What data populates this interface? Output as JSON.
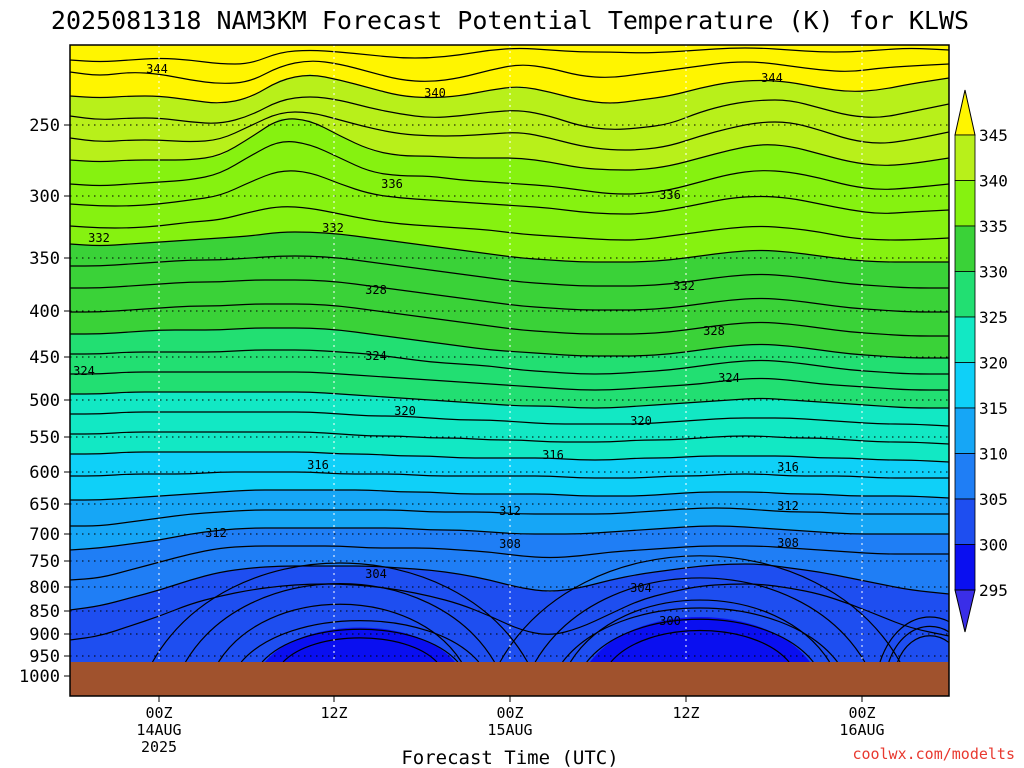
{
  "colors": {
    "ground": "#a0522d",
    "credit": "#e8392f"
  },
  "chart_data": {
    "type": "contour",
    "title": "2025081318 NAM3KM Forecast Potential Temperature (K) for KLWS",
    "xlabel": "Forecast Time (UTC)",
    "ylabel": "",
    "credit": "coolwx.com/modelts",
    "y_axis": {
      "reversed": true,
      "ticks": [
        "250",
        "300",
        "350",
        "400",
        "450",
        "500",
        "550",
        "600",
        "650",
        "700",
        "750",
        "800",
        "850",
        "900",
        "950",
        "1000"
      ]
    },
    "x_axis": {
      "ticks": [
        {
          "lines": [
            "00Z",
            "14AUG",
            "2025"
          ]
        },
        {
          "lines": [
            "12Z"
          ]
        },
        {
          "lines": [
            "00Z",
            "15AUG"
          ]
        },
        {
          "lines": [
            "12Z"
          ]
        },
        {
          "lines": [
            "00Z",
            "16AUG"
          ]
        }
      ]
    },
    "colorbar": {
      "levels": [
        295,
        300,
        305,
        310,
        315,
        320,
        325,
        330,
        335,
        340,
        345
      ],
      "labels": [
        "295",
        "300",
        "305",
        "310",
        "315",
        "320",
        "325",
        "330",
        "335",
        "340",
        "345"
      ],
      "colors": [
        "#3a2ee8",
        "#0a0ff0",
        "#1e4ef0",
        "#1f7ef5",
        "#16a6f6",
        "#0fd0f8",
        "#12e8c4",
        "#22df72",
        "#3ad238",
        "#86f210",
        "#b8f01a",
        "#fff500"
      ]
    },
    "contour_labels": [
      "344",
      "344",
      "340",
      "336",
      "336",
      "332",
      "332",
      "332",
      "328",
      "328",
      "324",
      "324",
      "324",
      "320",
      "320",
      "316",
      "316",
      "316",
      "312",
      "312",
      "312",
      "308",
      "308",
      "304",
      "304",
      "300"
    ],
    "grid": true
  }
}
